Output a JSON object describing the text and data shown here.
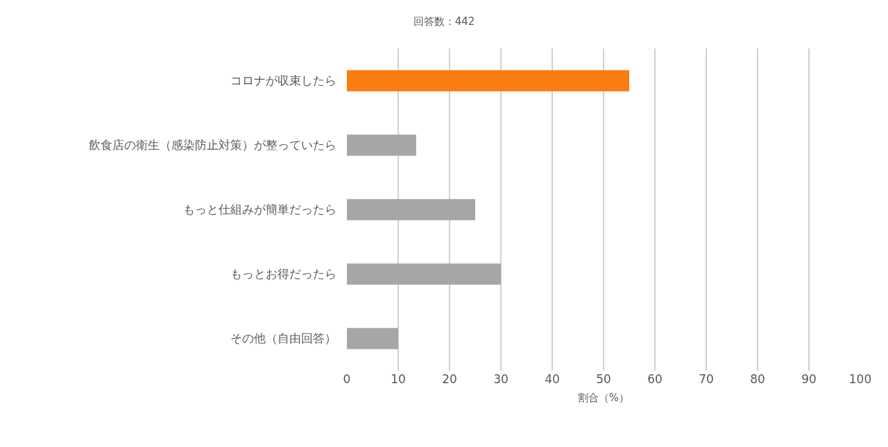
{
  "chart_data": {
    "type": "bar",
    "orientation": "horizontal",
    "title": "回答数：442",
    "xlabel": "割合（%）",
    "categories": [
      "コロナが収束したら",
      "飲食店の衛生（感染防止対策）が整っていたら",
      "もっと仕組みが簡単だったら",
      "もっとお得だったら",
      "その他（自由回答）"
    ],
    "values": [
      55,
      13.5,
      25,
      30,
      10
    ],
    "colors": [
      "#fa7d0f",
      "#a6a6a6",
      "#a6a6a6",
      "#a6a6a6",
      "#a6a6a6"
    ],
    "xlim": [
      0,
      100
    ],
    "xticks": [
      0,
      10,
      20,
      30,
      40,
      50,
      60,
      70,
      80,
      90,
      100
    ],
    "grid": "x",
    "legend": false
  }
}
